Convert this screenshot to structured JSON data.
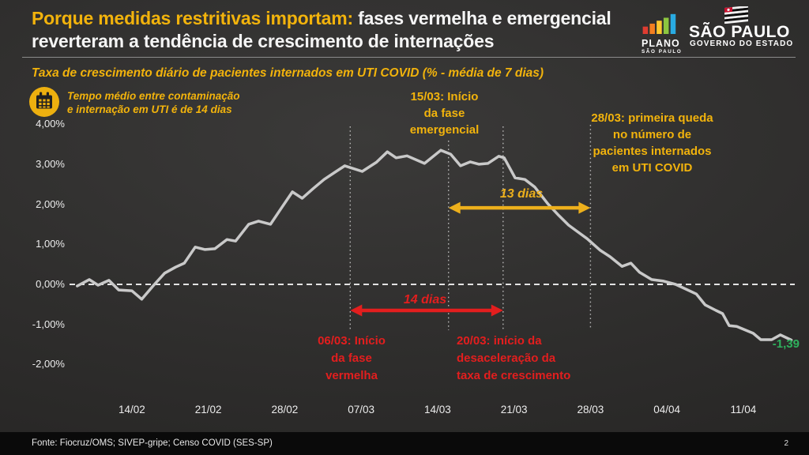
{
  "header": {
    "title_highlight": "Porque medidas restritivas importam:",
    "title_rest": " fases vermelha e emergencial",
    "title_line2": "reverteram a tendência de crescimento de internações"
  },
  "logos": {
    "plano": {
      "line1": "PLANO",
      "line2": "SÃO PAULO"
    },
    "gov": {
      "line1": "SÃO PAULO",
      "line2": "GOVERNO DO ESTADO"
    }
  },
  "note": {
    "line1": "Tempo médio entre contaminação",
    "line2": "e internação em UTI é de 14 dias"
  },
  "chart_data": {
    "type": "line",
    "title": "Taxa de crescimento diário de pacientes internados em UTI COVID (% - média de 7 dias)",
    "xlabel": "",
    "ylabel": "",
    "unit": "%",
    "ylim": [
      -2.5,
      4.3
    ],
    "grid": false,
    "legend": "none",
    "line_color": "#c9c9c9",
    "y_ticks": [
      {
        "value": 4,
        "label": "4,00%"
      },
      {
        "value": 3,
        "label": "3,00%"
      },
      {
        "value": 2,
        "label": "2,00%"
      },
      {
        "value": 1,
        "label": "1,00%"
      },
      {
        "value": 0,
        "label": "0,00%"
      },
      {
        "value": -1,
        "label": "-1,00%"
      },
      {
        "value": -2,
        "label": "-2,00%"
      }
    ],
    "x_ticks": [
      {
        "day": 6,
        "label": "14/02"
      },
      {
        "day": 13,
        "label": "21/02"
      },
      {
        "day": 20,
        "label": "28/02"
      },
      {
        "day": 27,
        "label": "07/03"
      },
      {
        "day": 34,
        "label": "14/03"
      },
      {
        "day": 41,
        "label": "21/03"
      },
      {
        "day": 48,
        "label": "28/03"
      },
      {
        "day": 55,
        "label": "04/04"
      },
      {
        "day": 62,
        "label": "11/04"
      }
    ],
    "points": [
      [
        1,
        -0.04
      ],
      [
        2.1,
        0.12
      ],
      [
        2.9,
        -0.02
      ],
      [
        3.9,
        0.1
      ],
      [
        4.8,
        -0.14
      ],
      [
        6,
        -0.16
      ],
      [
        6.9,
        -0.37
      ],
      [
        8,
        -0.02
      ],
      [
        9,
        0.28
      ],
      [
        10,
        0.43
      ],
      [
        10.8,
        0.53
      ],
      [
        11.8,
        0.93
      ],
      [
        12.7,
        0.87
      ],
      [
        13.6,
        0.89
      ],
      [
        14.7,
        1.12
      ],
      [
        15.5,
        1.08
      ],
      [
        16.7,
        1.5
      ],
      [
        17.6,
        1.58
      ],
      [
        18.7,
        1.5
      ],
      [
        19.7,
        1.91
      ],
      [
        20.7,
        2.31
      ],
      [
        21.6,
        2.15
      ],
      [
        22.6,
        2.39
      ],
      [
        23.6,
        2.62
      ],
      [
        24.6,
        2.8
      ],
      [
        25.5,
        2.96
      ],
      [
        27.1,
        2.82
      ],
      [
        28.4,
        3.05
      ],
      [
        29.4,
        3.31
      ],
      [
        30.2,
        3.16
      ],
      [
        31.2,
        3.21
      ],
      [
        32.8,
        3.02
      ],
      [
        34.3,
        3.35
      ],
      [
        35.2,
        3.25
      ],
      [
        36.1,
        2.96
      ],
      [
        37,
        3.06
      ],
      [
        37.8,
        3.0
      ],
      [
        38.6,
        3.02
      ],
      [
        39.6,
        3.2
      ],
      [
        40.1,
        3.16
      ],
      [
        41.1,
        2.66
      ],
      [
        42,
        2.62
      ],
      [
        42.9,
        2.43
      ],
      [
        44.1,
        2.01
      ],
      [
        45.1,
        1.72
      ],
      [
        46,
        1.48
      ],
      [
        46.7,
        1.34
      ],
      [
        47.7,
        1.14
      ],
      [
        48.9,
        0.85
      ],
      [
        49.8,
        0.69
      ],
      [
        50.9,
        0.45
      ],
      [
        51.7,
        0.53
      ],
      [
        52.5,
        0.3
      ],
      [
        53.6,
        0.12
      ],
      [
        54.7,
        0.08
      ],
      [
        55.8,
        0
      ],
      [
        56.9,
        -0.14
      ],
      [
        57.7,
        -0.24
      ],
      [
        58.5,
        -0.51
      ],
      [
        59.5,
        -0.65
      ],
      [
        60.1,
        -0.73
      ],
      [
        60.7,
        -1.03
      ],
      [
        61.4,
        -1.05
      ],
      [
        62.9,
        -1.22
      ],
      [
        63.6,
        -1.38
      ],
      [
        64.6,
        -1.38
      ],
      [
        65.4,
        -1.26
      ],
      [
        66.4,
        -1.39
      ]
    ],
    "event_lines": [
      {
        "date": "06/03",
        "day": 26
      },
      {
        "date": "15/03",
        "day": 35
      },
      {
        "date": "20/03",
        "day": 40
      },
      {
        "date": "28/03",
        "day": 48
      }
    ],
    "arrows": [
      {
        "id": "14-dias",
        "from_day": 26,
        "to_day": 40,
        "y_value": -0.65,
        "color": "#e31e1e"
      },
      {
        "id": "13-dias",
        "from_day": 35,
        "to_day": 48,
        "y_value": 1.91,
        "color": "#edb01c"
      }
    ],
    "end_label": {
      "text": "-1,39",
      "color": "#2eb05c"
    }
  },
  "annotations": {
    "emergencial": {
      "lines": [
        "15/03: Início",
        "da fase",
        "emergencial"
      ]
    },
    "queda": {
      "lines": [
        "28/03: primeira queda",
        "no número de",
        "pacientes internados",
        "em UTI COVID"
      ]
    },
    "vermelha": {
      "lines": [
        "06/03: Início",
        "da fase",
        "vermelha"
      ]
    },
    "desaceleracao": {
      "lines": [
        "20/03: início da",
        "desaceleração da",
        "taxa de crescimento"
      ]
    },
    "dias13": "13 dias",
    "dias14": "14 dias"
  },
  "footer": {
    "source": "Fonte: Fiocruz/OMS; SIVEP-gripe; Censo COVID (SES-SP)",
    "page": "2"
  },
  "colors": {
    "accent_yellow": "#f2b30c",
    "accent_red": "#e31e1e",
    "accent_green": "#2eb05c",
    "line_gray": "#c9c9c9",
    "background": "#2f2e2d"
  }
}
